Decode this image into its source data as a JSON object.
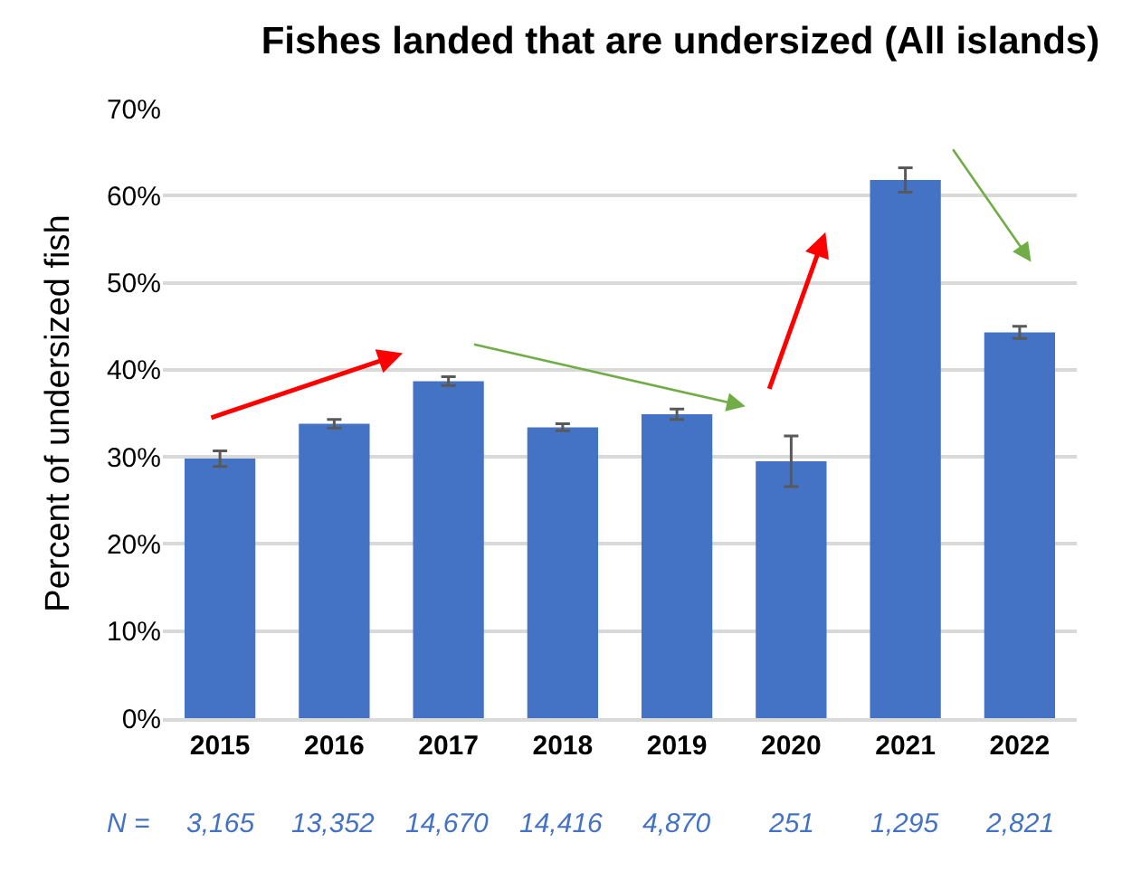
{
  "chart_data": {
    "type": "bar",
    "title": "Fishes landed that are undersized (All islands)",
    "ylabel": "Percent of undersized fish",
    "categories": [
      "2015",
      "2016",
      "2017",
      "2018",
      "2019",
      "2020",
      "2021",
      "2022"
    ],
    "values": [
      29.8,
      33.8,
      38.7,
      33.4,
      34.9,
      29.5,
      61.8,
      44.3
    ],
    "errors": [
      0.9,
      0.5,
      0.5,
      0.4,
      0.6,
      2.9,
      1.4,
      0.7
    ],
    "color": "#4472c4",
    "ylim": [
      0,
      70
    ],
    "yticks": [
      {
        "value": 0,
        "label": "0%"
      },
      {
        "value": 10,
        "label": "10%"
      },
      {
        "value": 20,
        "label": "20%"
      },
      {
        "value": 30,
        "label": "30%"
      },
      {
        "value": 40,
        "label": "40%"
      },
      {
        "value": 50,
        "label": "50%"
      },
      {
        "value": 60,
        "label": "60%"
      },
      {
        "value": 70,
        "label": "70%"
      }
    ],
    "grid": "y",
    "legend": false,
    "annotations": [
      "N =",
      "3,165",
      "13,352",
      "14,670",
      "14,416",
      "4,870",
      "251",
      "1,295",
      "2,821"
    ]
  }
}
